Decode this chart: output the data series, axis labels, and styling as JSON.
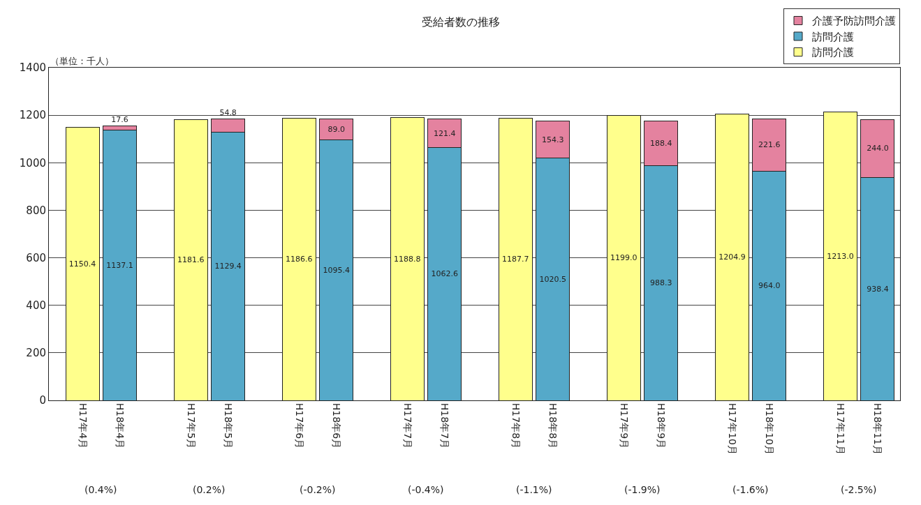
{
  "chart_data": {
    "type": "bar",
    "title": "受給者数の推移",
    "stacked": true,
    "categories": [
      "H17年4月",
      "H18年4月",
      "H17年5月",
      "H18年5月",
      "H17年6月",
      "H18年6月",
      "H17年7月",
      "H18年7月",
      "H17年8月",
      "H18年8月",
      "H17年9月",
      "H18年9月",
      "H17年10月",
      "H18年10月",
      "H17年11月",
      "H18年11月"
    ],
    "series": [
      {
        "name": "訪問介護",
        "color": "#ffff8c",
        "values": [
          1150.4,
          null,
          1181.6,
          null,
          1186.6,
          null,
          1188.8,
          null,
          1187.7,
          null,
          1199.0,
          null,
          1204.9,
          null,
          1213.0,
          null
        ],
        "value_labels": [
          "1150.4",
          null,
          "1181.6",
          null,
          "1186.6",
          null,
          "1188.8",
          null,
          "1187.7",
          null,
          "1199.0",
          null,
          "1204.9",
          null,
          "1213.0",
          null
        ]
      },
      {
        "name": "訪問介護",
        "color": "#55a9c9",
        "values": [
          null,
          1137.1,
          null,
          1129.4,
          null,
          1095.4,
          null,
          1062.6,
          null,
          1020.5,
          null,
          988.3,
          null,
          964.0,
          null,
          938.4
        ],
        "value_labels": [
          null,
          "1137.1",
          null,
          "1129.4",
          null,
          "1095.4",
          null,
          "1062.6",
          null,
          "1020.5",
          null,
          "988.3",
          null,
          "964.0",
          null,
          "938.4"
        ]
      },
      {
        "name": "介護予防訪問介護",
        "color": "#e4829f",
        "values": [
          null,
          17.6,
          null,
          54.8,
          null,
          89.0,
          null,
          121.4,
          null,
          154.3,
          null,
          188.4,
          null,
          221.6,
          null,
          244.0
        ],
        "value_labels": [
          null,
          "17.6",
          null,
          "54.8",
          null,
          "89.0",
          null,
          "121.4",
          null,
          "154.3",
          null,
          "188.4",
          null,
          "221.6",
          null,
          "244.0"
        ]
      }
    ],
    "ylim": [
      0,
      1400
    ],
    "yticks": [
      0,
      200,
      400,
      600,
      800,
      1000,
      1200,
      1400
    ],
    "grid": "y",
    "legend": "top right",
    "annotations": [
      "（単位：千人）",
      "(0.4%)",
      "(0.2%)",
      "(-0.2%)",
      "(-0.4%)",
      "(-1.1%)",
      "(-1.9%)",
      "(-1.6%)",
      "(-2.5%)"
    ]
  }
}
